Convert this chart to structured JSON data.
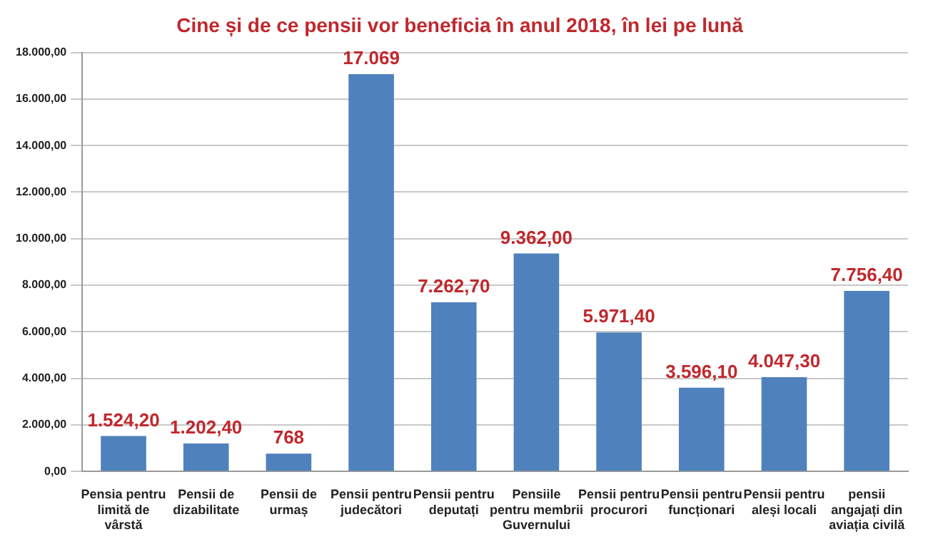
{
  "chart_data": {
    "type": "bar",
    "title": "Cine și de ce pensii vor beneficia în anul 2018, în lei pe lună",
    "categories": [
      "Pensia pentru limită de vârstă",
      "Pensii de dizabilitate",
      "Pensii de urmaș",
      "Pensii pentru judecători",
      "Pensii pentru deputați",
      "Pensiile pentru membrii Guvernului",
      "Pensii pentru procurori",
      "Pensii pentru funcționari",
      "Pensii pentru aleși locali",
      "pensii angajați din aviația civilă"
    ],
    "values": [
      1524.2,
      1202.4,
      768,
      17069,
      7262.7,
      9362,
      5971.4,
      3596.1,
      4047.3,
      7756.4
    ],
    "value_labels": [
      "1.524,20",
      "1.202,40",
      "768",
      "17.069",
      "7.262,70",
      "9.362,00",
      "5.971,40",
      "3.596,10",
      "4.047,30",
      "7.756,40"
    ],
    "color": "#4f81bd",
    "ylim": [
      0,
      18000
    ],
    "yticks": [
      {
        "value": 0,
        "label": "0,00"
      },
      {
        "value": 2000,
        "label": "2.000,00"
      },
      {
        "value": 4000,
        "label": "4.000,00"
      },
      {
        "value": 6000,
        "label": "6.000,00"
      },
      {
        "value": 8000,
        "label": "8.000,00"
      },
      {
        "value": 10000,
        "label": "10.000,00"
      },
      {
        "value": 12000,
        "label": "12.000,00"
      },
      {
        "value": 14000,
        "label": "14.000,00"
      },
      {
        "value": 16000,
        "label": "16.000,00"
      },
      {
        "value": 18000,
        "label": "18.000,00"
      }
    ],
    "grid": "y",
    "legend": false
  }
}
